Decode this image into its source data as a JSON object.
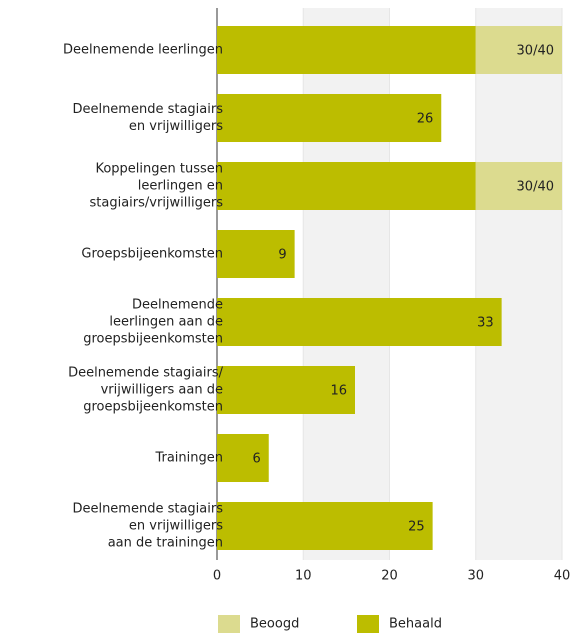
{
  "chart_data": {
    "type": "stacked-barh",
    "categories": [
      "Deelnemende leerlingen",
      "Deelnemende stagiairs\nen vrijwilligers",
      "Koppelingen tussen\nleerlingen en\nstagiairs/vrijwilligers",
      "Groepsbijeenkomsten",
      "Deelnemende\nleerlingen aan de\ngroepsbijeenkomsten",
      "Deelnemende stagiairs/\nvrijwilligers aan de\ngroepsbijeenkomsten",
      "Trainingen",
      "Deelnemende stagiairs\nen vrijwilligers\naan de trainingen"
    ],
    "series": [
      {
        "name": "Behaald",
        "color": "#bcbd00",
        "values": [
          30,
          26,
          30,
          9,
          33,
          16,
          6,
          25
        ],
        "value_labels": [
          "30/40",
          "26",
          "30/40",
          "9",
          "33",
          "16",
          "6",
          "25"
        ]
      },
      {
        "name": "Beoogd",
        "color": "#dcdb8f",
        "values": [
          10,
          null,
          10,
          null,
          null,
          null,
          null,
          null
        ]
      }
    ],
    "xlim": [
      0,
      40
    ],
    "xticks": [
      0,
      10,
      20,
      30,
      40
    ]
  }
}
